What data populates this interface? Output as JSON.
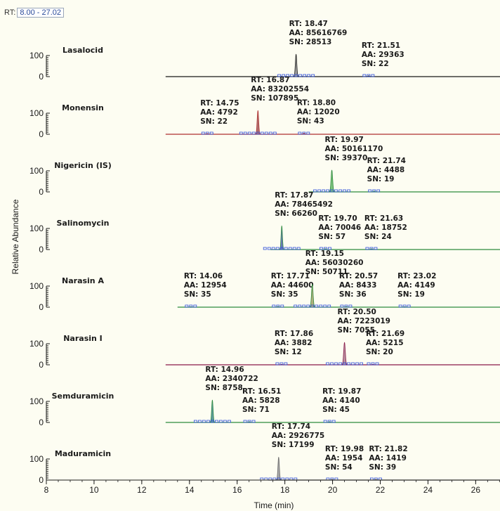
{
  "rt_range": {
    "label": "RT:",
    "value": "8.00 - 27.02"
  },
  "chart_data": {
    "type": "line",
    "xlabel": "Time (min)",
    "ylabel": "Relative Abundance",
    "xlim": [
      8,
      27.02
    ],
    "xticks": [
      8,
      10,
      12,
      14,
      16,
      18,
      20,
      22,
      24,
      26
    ],
    "yticks": [
      0,
      100
    ],
    "panels": [
      {
        "name": "Lasalocid",
        "baseline_color": "#1a1a1a",
        "trace_start": 13.0,
        "fill": "#9c9c9c",
        "peaks": [
          {
            "rt": 18.47,
            "height": 0.8,
            "width": 0.12,
            "lines": [
              "RT: 18.47",
              "AA: 85616769",
              "SN: 28513"
            ]
          },
          {
            "rt": 21.51,
            "height": 0.03,
            "width": 0.1,
            "lines": [
              "RT: 21.51",
              "AA: 29363",
              "SN: 22"
            ]
          }
        ]
      },
      {
        "name": "Monensin",
        "baseline_color": "#b03030",
        "trace_start": 13.0,
        "fill": "#b07070",
        "peaks": [
          {
            "rt": 14.75,
            "height": 0.03,
            "width": 0.1,
            "lines": [
              "RT: 14.75",
              "AA: 4792",
              "SN: 22"
            ]
          },
          {
            "rt": 16.87,
            "height": 0.85,
            "width": 0.12,
            "lines": [
              "RT: 16.87",
              "AA: 83202554",
              "SN: 107895"
            ]
          },
          {
            "rt": 18.8,
            "height": 0.04,
            "width": 0.1,
            "lines": [
              "RT: 18.80",
              "AA: 12020",
              "SN: 43"
            ]
          }
        ]
      },
      {
        "name": "Nigericin (IS)",
        "baseline_color": "#2e8b3e",
        "trace_start": 19.0,
        "fill": "#7cc17c",
        "peaks": [
          {
            "rt": 19.97,
            "height": 0.78,
            "width": 0.13,
            "lines": [
              "RT: 19.97",
              "AA: 50161170",
              "SN: 39370"
            ]
          },
          {
            "rt": 21.74,
            "height": 0.03,
            "width": 0.1,
            "lines": [
              "RT: 21.74",
              "AA: 4488",
              "SN: 19"
            ]
          }
        ]
      },
      {
        "name": "Salinomycin",
        "baseline_color": "#2e8b3e",
        "trace_start": 17.4,
        "fill": "#6a7bb8",
        "peaks": [
          {
            "rt": 17.87,
            "height": 0.85,
            "width": 0.11,
            "lines": [
              "RT: 17.87",
              "AA: 78465492",
              "SN: 66260"
            ]
          },
          {
            "rt": 19.7,
            "height": 0.03,
            "width": 0.1,
            "lines": [
              "RT: 19.70",
              "AA: 70046",
              "SN: 57"
            ]
          },
          {
            "rt": 21.63,
            "height": 0.03,
            "width": 0.1,
            "lines": [
              "RT: 21.63",
              "AA: 18752",
              "SN: 24"
            ]
          }
        ]
      },
      {
        "name": "Narasin A",
        "baseline_color": "#2e8b3e",
        "trace_start": 13.5,
        "fill": "#b0b07c",
        "peaks": [
          {
            "rt": 14.06,
            "height": 0.02,
            "width": 0.1,
            "lines": [
              "RT: 14.06",
              "AA: 12954",
              "SN: 35"
            ]
          },
          {
            "rt": 17.71,
            "height": 0.03,
            "width": 0.1,
            "lines": [
              "RT: 17.71",
              "AA: 44600",
              "SN: 35"
            ]
          },
          {
            "rt": 19.15,
            "height": 0.82,
            "width": 0.13,
            "lines": [
              "RT: 19.15",
              "AA: 56030260",
              "SN: 50711"
            ]
          },
          {
            "rt": 20.57,
            "height": 0.03,
            "width": 0.1,
            "lines": [
              "RT: 20.57",
              "AA: 8433",
              "SN: 36"
            ]
          },
          {
            "rt": 23.02,
            "height": 0.02,
            "width": 0.1,
            "lines": [
              "RT: 23.02",
              "AA: 4149",
              "SN: 19"
            ]
          }
        ]
      },
      {
        "name": "Narasin I",
        "baseline_color": "#8a1a4a",
        "trace_start": 13.0,
        "fill": "#b890a0",
        "peaks": [
          {
            "rt": 17.86,
            "height": 0.02,
            "width": 0.1,
            "lines": [
              "RT: 17.86",
              "AA: 3882",
              "SN: 12"
            ]
          },
          {
            "rt": 20.5,
            "height": 0.8,
            "width": 0.13,
            "lines": [
              "RT: 20.50",
              "AA: 7223019",
              "SN: 7055"
            ]
          },
          {
            "rt": 21.69,
            "height": 0.02,
            "width": 0.1,
            "lines": [
              "RT: 21.69",
              "AA: 5215",
              "SN: 20"
            ]
          }
        ]
      },
      {
        "name": "Semduramicin",
        "baseline_color": "#2e8b3e",
        "trace_start": 13.0,
        "fill": "#5e9aa0",
        "peaks": [
          {
            "rt": 14.96,
            "height": 0.8,
            "width": 0.12,
            "lines": [
              "RT: 14.96",
              "AA: 2340722",
              "SN: 8758"
            ]
          },
          {
            "rt": 16.51,
            "height": 0.03,
            "width": 0.1,
            "lines": [
              "RT: 16.51",
              "AA: 5828",
              "SN: 71"
            ]
          },
          {
            "rt": 19.87,
            "height": 0.03,
            "width": 0.1,
            "lines": [
              "RT: 19.87",
              "AA: 4140",
              "SN: 45"
            ]
          }
        ]
      },
      {
        "name": "Maduramicin",
        "baseline_color": "#6a6a6a",
        "trace_start": 17.3,
        "fill": "#a8a8a8",
        "peaks": [
          {
            "rt": 17.74,
            "height": 0.82,
            "width": 0.12,
            "lines": [
              "RT: 17.74",
              "AA: 2926775",
              "SN: 17199"
            ]
          },
          {
            "rt": 19.98,
            "height": 0.03,
            "width": 0.1,
            "lines": [
              "RT: 19.98",
              "AA: 1954",
              "SN: 54"
            ]
          },
          {
            "rt": 21.82,
            "height": 0.03,
            "width": 0.1,
            "lines": [
              "RT: 21.82",
              "AA: 1419",
              "SN: 39"
            ]
          }
        ]
      }
    ]
  }
}
